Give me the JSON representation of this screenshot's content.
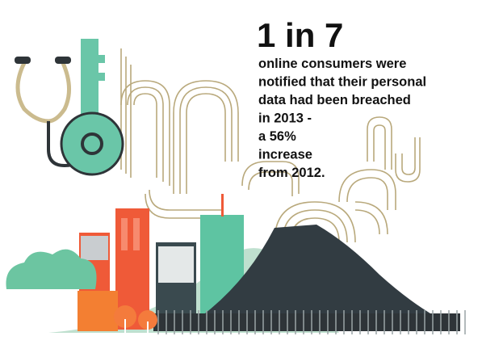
{
  "headline": {
    "stat": "1 in 7",
    "lines": [
      "online consumers were",
      "notified that their personal",
      "data had been breached",
      "in 2013 -",
      "a 56%",
      "increase",
      "from 2012."
    ]
  }
}
